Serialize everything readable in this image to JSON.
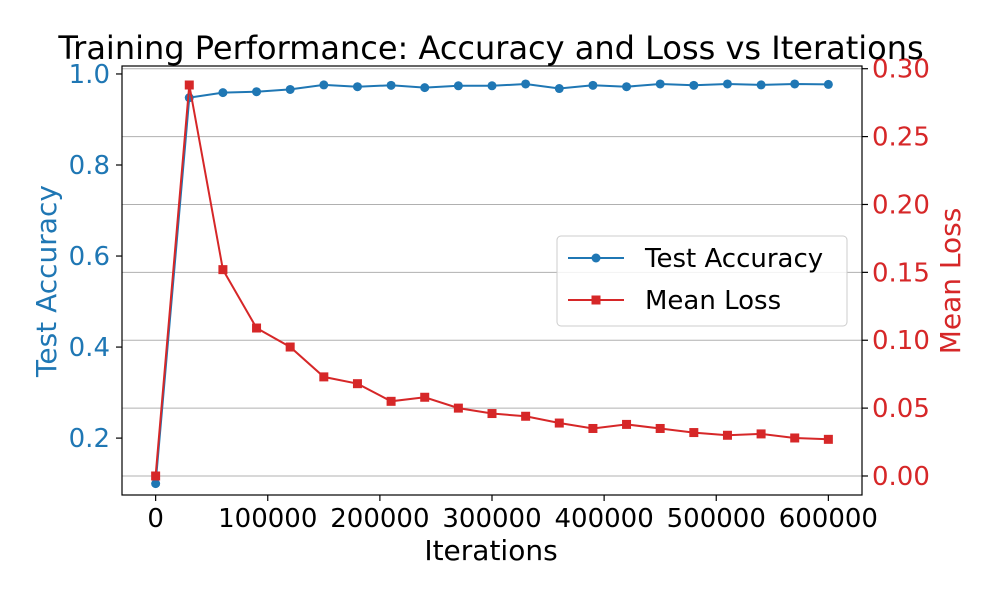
{
  "chart_data": {
    "type": "line",
    "title": "Training Performance: Accuracy and Loss vs Iterations",
    "xlabel": "Iterations",
    "ylabel_left": "Test Accuracy",
    "ylabel_right": "Mean Loss",
    "xlim": [
      -30000,
      630000
    ],
    "ylim_left": [
      0.075,
      1.0175
    ],
    "ylim_right": [
      -0.014,
      0.302
    ],
    "x_ticks": [
      0,
      100000,
      200000,
      300000,
      400000,
      500000,
      600000
    ],
    "x_tick_labels": [
      "0",
      "100000",
      "200000",
      "300000",
      "400000",
      "500000",
      "600000"
    ],
    "y_left_ticks": [
      0.2,
      0.4,
      0.6,
      0.8,
      1.0
    ],
    "y_left_tick_labels": [
      "0.2",
      "0.4",
      "0.6",
      "0.8",
      "1.0"
    ],
    "y_right_ticks": [
      0.0,
      0.05,
      0.1,
      0.15,
      0.2,
      0.25,
      0.3
    ],
    "y_right_tick_labels": [
      "0.00",
      "0.05",
      "0.10",
      "0.15",
      "0.20",
      "0.25",
      "0.30"
    ],
    "grid": "right-axis horizontal lines",
    "legend_position": "center-right",
    "x": [
      0,
      30000,
      60000,
      90000,
      120000,
      150000,
      180000,
      210000,
      240000,
      270000,
      300000,
      330000,
      360000,
      390000,
      420000,
      450000,
      480000,
      510000,
      540000,
      570000,
      600000
    ],
    "series": [
      {
        "name": "Test Accuracy",
        "axis": "left",
        "marker": "circle",
        "color": "#1f77b4",
        "values": [
          0.1,
          0.948,
          0.959,
          0.961,
          0.966,
          0.976,
          0.972,
          0.975,
          0.97,
          0.974,
          0.974,
          0.978,
          0.968,
          0.975,
          0.972,
          0.978,
          0.975,
          0.978,
          0.976,
          0.978,
          0.977
        ]
      },
      {
        "name": "Mean Loss",
        "axis": "right",
        "marker": "square",
        "color": "#d62728",
        "values": [
          0.0,
          0.288,
          0.152,
          0.109,
          0.095,
          0.073,
          0.068,
          0.055,
          0.058,
          0.05,
          0.046,
          0.044,
          0.039,
          0.035,
          0.038,
          0.035,
          0.032,
          0.03,
          0.031,
          0.028,
          0.027
        ]
      }
    ],
    "colors": {
      "left_axis": "#1f77b4",
      "right_axis": "#d62728",
      "grid": "#b0b0b0"
    }
  }
}
